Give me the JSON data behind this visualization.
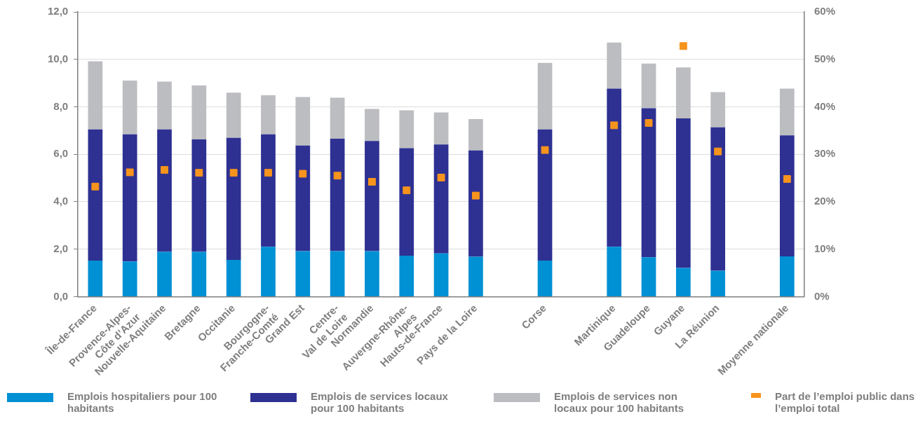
{
  "chart_data": {
    "type": "bar",
    "stacked": true,
    "categories": [
      "Île-de-France",
      "Provence-Alpes-Côte d’Azur",
      "Nouvelle-Aquitaine",
      "Bretagne",
      "Occitanie",
      "Bourgogne-Franche-Comté",
      "Grand Est",
      "Centre-Val de Loire",
      "Normandie",
      "Auvergne-Rhône-Alpes",
      "Hauts-de-France",
      "Pays de la Loire",
      null,
      "Corse",
      null,
      "Martinique",
      "Guadeloupe",
      "Guyane",
      "La Réunion",
      null,
      "Moyenne nationale"
    ],
    "series": [
      {
        "name": "Emplois hospitaliers pour 100 habitants",
        "color": "#0090d4",
        "values": [
          1.52,
          1.48,
          1.89,
          1.89,
          1.55,
          2.1,
          1.92,
          1.92,
          1.92,
          1.73,
          1.82,
          1.68,
          null,
          1.52,
          null,
          2.1,
          1.66,
          1.21,
          1.09,
          null,
          1.7
        ]
      },
      {
        "name": "Emplois de services locaux pour 100 habitants",
        "color": "#2e3192",
        "values": [
          5.53,
          5.36,
          5.16,
          4.74,
          5.14,
          4.74,
          4.45,
          4.74,
          4.64,
          4.53,
          4.59,
          4.48,
          null,
          5.53,
          null,
          6.67,
          6.28,
          6.3,
          6.05,
          null,
          5.1
        ]
      },
      {
        "name": "Emplois de services non locaux pour 100 habitants",
        "color": "#bcbdc0",
        "values": [
          2.87,
          2.27,
          2.01,
          2.27,
          1.91,
          1.65,
          2.04,
          1.72,
          1.35,
          1.59,
          1.35,
          1.32,
          null,
          2.8,
          null,
          1.94,
          1.88,
          2.15,
          1.48,
          null,
          1.97
        ]
      },
      {
        "name": "Part de l’emploi public dans l’emploi total",
        "color": "#f7941d",
        "type": "scatter",
        "axis": "y2",
        "marker": "square",
        "values": [
          23.2,
          26.2,
          26.7,
          26.1,
          26.1,
          26.1,
          25.9,
          25.5,
          24.2,
          22.4,
          25.1,
          21.3,
          null,
          30.9,
          null,
          36.1,
          36.6,
          52.8,
          30.6,
          null,
          24.8
        ]
      }
    ],
    "ylim": [
      0,
      12
    ],
    "yticks": [
      {
        "value": 0,
        "label": "0,0"
      },
      {
        "value": 2,
        "label": "2,0"
      },
      {
        "value": 4,
        "label": "4,0"
      },
      {
        "value": 6,
        "label": "6,0"
      },
      {
        "value": 8,
        "label": "8,0"
      },
      {
        "value": 10,
        "label": "10,0"
      },
      {
        "value": 12,
        "label": "12,0"
      }
    ],
    "y2lim": [
      0,
      60
    ],
    "y2ticks": [
      {
        "value": 0,
        "label": "0%"
      },
      {
        "value": 10,
        "label": "10%"
      },
      {
        "value": 20,
        "label": "20%"
      },
      {
        "value": 30,
        "label": "30%"
      },
      {
        "value": 40,
        "label": "40%"
      },
      {
        "value": 50,
        "label": "50%"
      },
      {
        "value": 60,
        "label": "60%"
      }
    ],
    "grid": "y",
    "legend": "bottom"
  }
}
